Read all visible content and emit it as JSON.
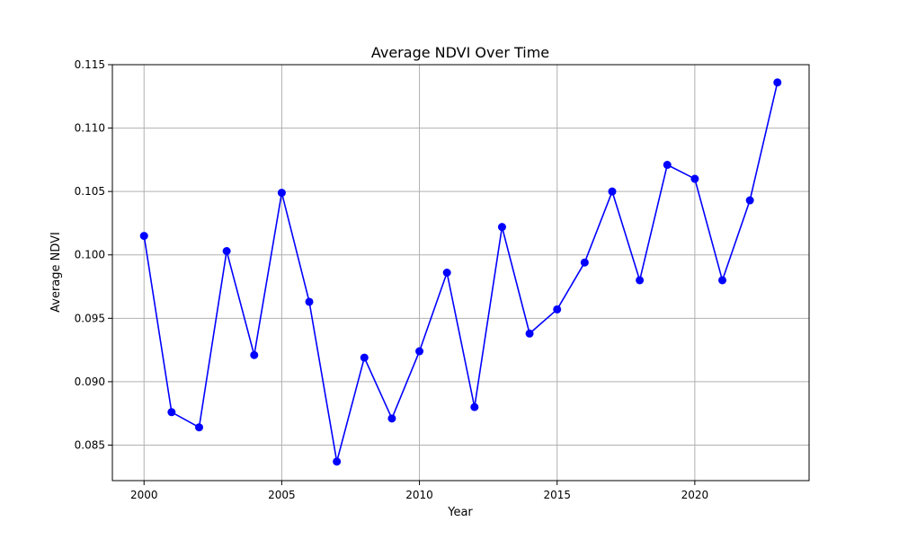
{
  "chart_data": {
    "type": "line",
    "title": "Average NDVI Over Time",
    "xlabel": "Year",
    "ylabel": "Average NDVI",
    "xlim": [
      1998.85,
      2024.15
    ],
    "ylim": [
      0.0822,
      0.115
    ],
    "x_ticks": [
      2000,
      2005,
      2010,
      2015,
      2020
    ],
    "x_tick_labels": [
      "2000",
      "2005",
      "2010",
      "2015",
      "2020"
    ],
    "y_ticks": [
      0.085,
      0.09,
      0.095,
      0.1,
      0.105,
      0.11,
      0.115
    ],
    "y_tick_labels": [
      "0.085",
      "0.090",
      "0.095",
      "0.100",
      "0.105",
      "0.110",
      "0.115"
    ],
    "grid": true,
    "series": [
      {
        "color": "#0000ff",
        "marker": "circle",
        "x": [
          2000,
          2001,
          2002,
          2003,
          2004,
          2005,
          2006,
          2007,
          2008,
          2009,
          2010,
          2011,
          2012,
          2013,
          2014,
          2015,
          2016,
          2017,
          2018,
          2019,
          2020,
          2021,
          2022,
          2023
        ],
        "y": [
          0.1015,
          0.0876,
          0.0864,
          0.1003,
          0.0921,
          0.1049,
          0.0963,
          0.0837,
          0.0919,
          0.0871,
          0.0924,
          0.0986,
          0.088,
          0.1022,
          0.0938,
          0.0957,
          0.0994,
          0.105,
          0.098,
          0.1071,
          0.106,
          0.098,
          0.1043,
          0.1136
        ]
      }
    ]
  }
}
